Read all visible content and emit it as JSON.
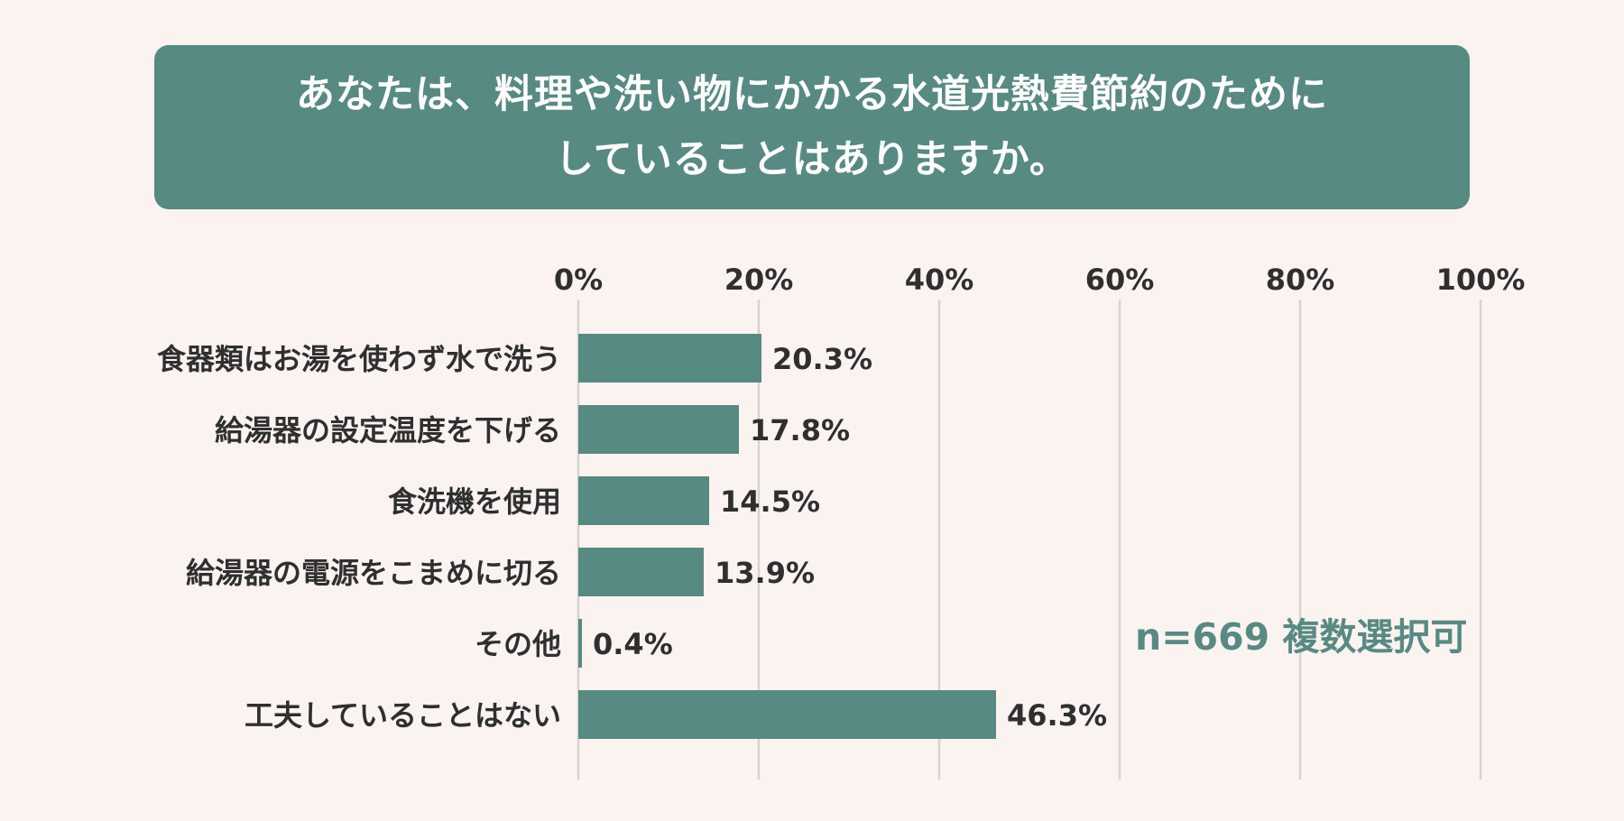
{
  "header": {
    "title_line1": "あなたは、料理や洗い物にかかる水道光熱費節約のために",
    "title_line2": "していることはありますか。"
  },
  "note": "n=669 複数選択可",
  "colors": {
    "bar": "#578a82",
    "grid": "#d4d4d0",
    "text": "#2f2f2f",
    "background": "#fbf3f0"
  },
  "chart_data": {
    "type": "bar",
    "orientation": "horizontal",
    "categories": [
      "食器類はお湯を使わず水で洗う",
      "給湯器の設定温度を下げる",
      "食洗機を使用",
      "給湯器の電源をこまめに切る",
      "その他",
      "工夫していることはない"
    ],
    "values": [
      20.3,
      17.8,
      14.5,
      13.9,
      0.4,
      46.3
    ],
    "value_labels": [
      "20.3%",
      "17.8%",
      "14.5%",
      "13.9%",
      "0.4%",
      "46.3%"
    ],
    "xlim": [
      0,
      100
    ],
    "xticks": [
      0,
      20,
      40,
      60,
      80,
      100
    ],
    "xtick_labels": [
      "0%",
      "20%",
      "40%",
      "60%",
      "80%",
      "100%"
    ],
    "axis_position": "top",
    "grid": true,
    "legend": false
  }
}
